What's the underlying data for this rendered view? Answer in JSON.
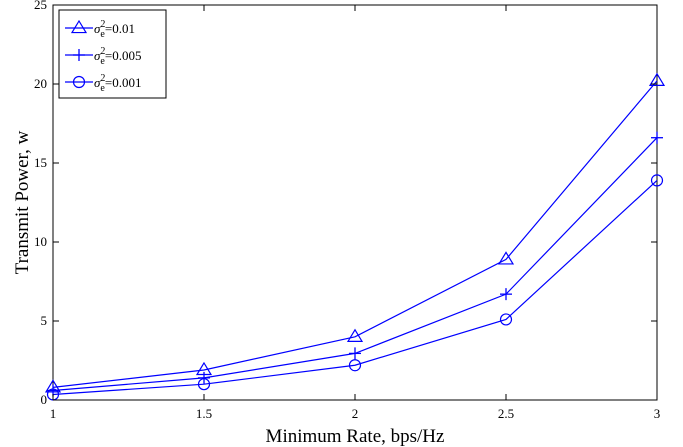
{
  "chart_data": {
    "type": "line",
    "title": "",
    "xlabel": "Minimum Rate, bps/Hz",
    "ylabel": "Transmit Power, w",
    "x": [
      1,
      1.5,
      2,
      2.5,
      3
    ],
    "xlim": [
      1,
      3
    ],
    "ylim": [
      0,
      25
    ],
    "xticks": [
      1,
      1.5,
      2,
      2.5,
      3
    ],
    "xtick_labels": [
      "1",
      "1.5",
      "2",
      "2.5",
      "3"
    ],
    "yticks": [
      0,
      5,
      10,
      15,
      20,
      25
    ],
    "ytick_labels": [
      "0",
      "5",
      "10",
      "15",
      "20",
      "25"
    ],
    "grid": false,
    "legend_position": "top-left",
    "color": "#0000ff",
    "series": [
      {
        "name": "σe²=0.01",
        "legend": {
          "sym": "σ",
          "sub": "e",
          "sup": "2",
          "rest": "=0.01"
        },
        "marker": "triangle",
        "values": [
          0.8,
          1.9,
          4.0,
          8.9,
          20.2
        ]
      },
      {
        "name": "σe²=0.005",
        "legend": {
          "sym": "σ",
          "sub": "e",
          "sup": "2",
          "rest": "=0.005"
        },
        "marker": "plus",
        "values": [
          0.6,
          1.4,
          2.95,
          6.7,
          16.6
        ]
      },
      {
        "name": "σe²=0.001",
        "legend": {
          "sym": "σ",
          "sub": "e",
          "sup": "2",
          "rest": "=0.001"
        },
        "marker": "circle",
        "values": [
          0.35,
          1.0,
          2.2,
          5.1,
          13.9
        ]
      }
    ]
  }
}
